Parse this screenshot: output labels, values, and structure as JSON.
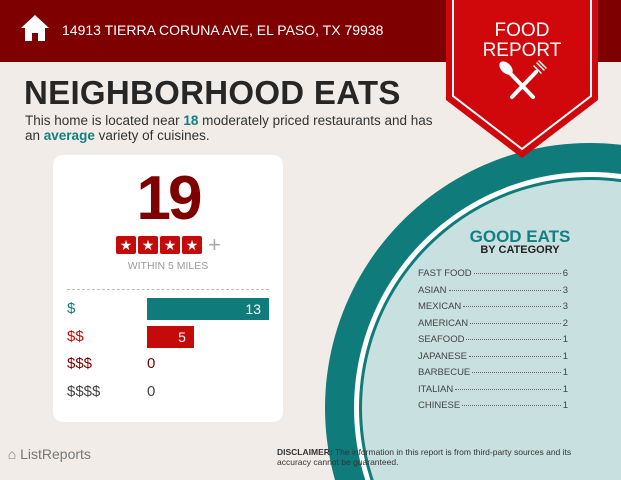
{
  "header": {
    "address": "14913 TIERRA CORUNA AVE, EL PASO, TX 79938",
    "icon": "home-icon"
  },
  "badge": {
    "line1": "FOOD",
    "line2": "REPORT",
    "icon": "spoon-fork-icon",
    "color": "#d0080b"
  },
  "title": "NEIGHBORHOOD EATS",
  "intro": {
    "pre": "This home is located near ",
    "count": "18",
    "mid": " moderately priced restaurants and has an ",
    "variety": "average",
    "post": " variety of cuisines."
  },
  "summary": {
    "total": "19",
    "rating_stars": 4,
    "rating_suffix": "+",
    "within": "WITHIN 5 MILES"
  },
  "price_levels": [
    {
      "label": "$",
      "value": 13,
      "color": "#0f7b7b"
    },
    {
      "label": "$$",
      "value": 5,
      "color": "#c50a0a"
    },
    {
      "label": "$$$",
      "value": 0,
      "color": "#7e0000"
    },
    {
      "label": "$$$$",
      "value": 0,
      "color": "#444444"
    }
  ],
  "categories_panel": {
    "title": "GOOD EATS",
    "subtitle": "BY CATEGORY",
    "items": [
      {
        "name": "FAST FOOD",
        "count": "6"
      },
      {
        "name": "ASIAN",
        "count": "3"
      },
      {
        "name": "MEXICAN",
        "count": "3"
      },
      {
        "name": "AMERICAN",
        "count": "2"
      },
      {
        "name": "SEAFOOD",
        "count": "1"
      },
      {
        "name": "JAPANESE",
        "count": "1"
      },
      {
        "name": "BARBECUE",
        "count": "1"
      },
      {
        "name": "ITALIAN",
        "count": "1"
      },
      {
        "name": "CHINESE",
        "count": "1"
      }
    ]
  },
  "footer": {
    "logo": "ListReports",
    "disclaimer_label": "DISCLAIMER:",
    "disclaimer": " The information in this report is from third-party sources and its accuracy cannot be guaranteed."
  }
}
